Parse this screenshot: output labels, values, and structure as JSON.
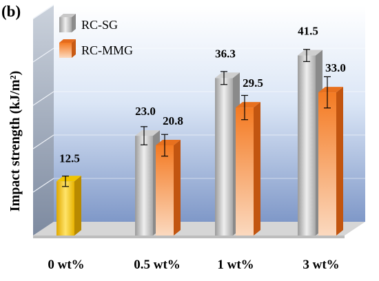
{
  "panel_label": "(b)",
  "chart_data": {
    "type": "bar",
    "title": "",
    "xlabel": "",
    "ylabel": "Impact strength (kJ/m²)",
    "ylim": [
      0,
      50
    ],
    "grid": true,
    "legend_position": "top-left",
    "categories": [
      "0 wt%",
      "0.5 wt%",
      "1 wt%",
      "3 wt%"
    ],
    "baseline": {
      "category": "0 wt%",
      "value": 12.5,
      "error": 1.2,
      "label": "12.5",
      "color": "#f2c200"
    },
    "series": [
      {
        "name": "RC-SG",
        "color": "#b4b4b4",
        "values": [
          null,
          23.0,
          36.3,
          41.5
        ],
        "errors": [
          null,
          2.1,
          1.5,
          1.4
        ],
        "labels": [
          "",
          "23.0",
          "36.3",
          "41.5"
        ]
      },
      {
        "name": "RC-MMG",
        "color": "#f07a2c",
        "values": [
          null,
          20.8,
          29.5,
          33.0
        ],
        "errors": [
          null,
          2.5,
          2.8,
          3.6
        ],
        "labels": [
          "",
          "20.8",
          "29.5",
          "33.0"
        ]
      }
    ]
  }
}
